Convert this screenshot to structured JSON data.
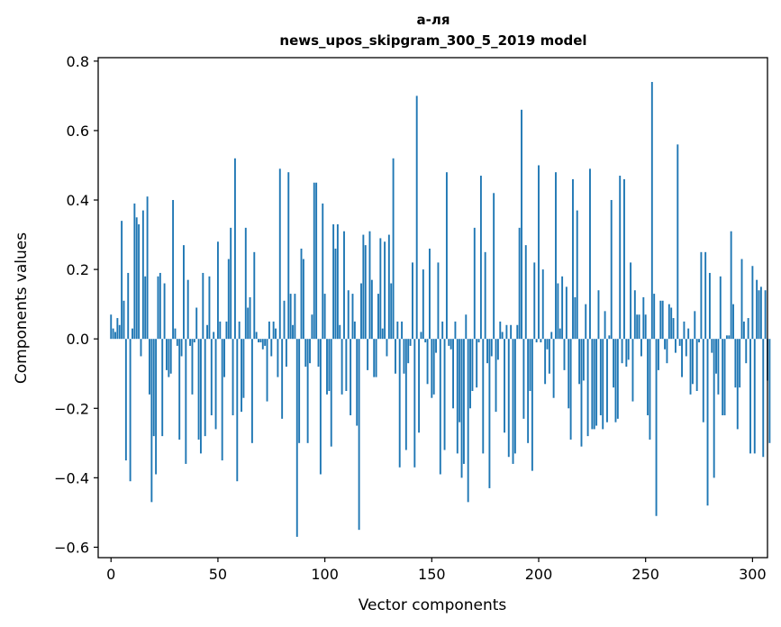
{
  "chart_data": {
    "type": "bar",
    "title_line1": "а-ля",
    "title_line2": "news_upos_skipgram_300_5_2019 model",
    "xlabel": "Vector components",
    "ylabel": "Components values",
    "xlim": [
      -6,
      307
    ],
    "ylim": [
      -0.63,
      0.81
    ],
    "xticks": [
      0,
      50,
      100,
      150,
      200,
      250,
      300
    ],
    "xtick_labels": [
      "0",
      "50",
      "100",
      "150",
      "200",
      "250",
      "300"
    ],
    "yticks": [
      -0.6,
      -0.4,
      -0.2,
      0.0,
      0.2,
      0.4,
      0.6,
      0.8
    ],
    "ytick_labels": [
      "−0.6",
      "−0.4",
      "−0.2",
      "0.0",
      "0.2",
      "0.4",
      "0.6",
      "0.8"
    ],
    "bar_color": "#1f77b4",
    "values": [
      0.07,
      0.03,
      0.02,
      0.06,
      0.04,
      0.34,
      0.11,
      -0.35,
      0.19,
      -0.41,
      0.03,
      0.39,
      0.35,
      0.33,
      -0.05,
      0.37,
      0.18,
      0.41,
      -0.16,
      -0.47,
      -0.28,
      -0.39,
      0.18,
      0.19,
      -0.28,
      0.16,
      -0.09,
      -0.11,
      -0.1,
      0.4,
      0.03,
      -0.02,
      -0.29,
      -0.05,
      0.27,
      -0.36,
      0.17,
      -0.02,
      -0.16,
      -0.01,
      0.09,
      -0.29,
      -0.33,
      0.19,
      -0.28,
      0.04,
      0.18,
      -0.22,
      0.02,
      -0.26,
      0.28,
      0.05,
      -0.35,
      -0.11,
      0.05,
      0.23,
      0.32,
      -0.22,
      0.52,
      -0.41,
      0.05,
      -0.21,
      -0.17,
      0.32,
      0.09,
      0.12,
      -0.3,
      0.25,
      0.02,
      -0.01,
      -0.01,
      -0.03,
      -0.02,
      -0.18,
      0.05,
      -0.05,
      0.05,
      0.03,
      -0.11,
      0.49,
      -0.23,
      0.11,
      -0.08,
      0.48,
      0.13,
      0.04,
      0.13,
      -0.57,
      -0.3,
      0.26,
      0.23,
      -0.08,
      -0.3,
      -0.07,
      0.07,
      0.45,
      0.45,
      -0.08,
      -0.39,
      0.39,
      0.13,
      -0.16,
      -0.15,
      -0.31,
      0.33,
      0.26,
      0.33,
      0.04,
      -0.16,
      0.31,
      -0.15,
      0.14,
      -0.22,
      0.13,
      0.05,
      -0.25,
      -0.55,
      0.16,
      0.3,
      0.27,
      -0.09,
      0.31,
      0.17,
      -0.11,
      -0.11,
      0.13,
      0.29,
      0.03,
      0.28,
      -0.05,
      0.3,
      0.16,
      0.52,
      -0.1,
      0.05,
      -0.37,
      0.05,
      -0.1,
      -0.32,
      -0.07,
      -0.02,
      0.22,
      -0.37,
      0.7,
      -0.27,
      0.02,
      0.2,
      -0.01,
      -0.13,
      0.26,
      -0.17,
      -0.16,
      -0.04,
      0.22,
      -0.39,
      0.05,
      -0.32,
      0.48,
      -0.02,
      -0.03,
      -0.2,
      0.05,
      -0.33,
      -0.24,
      -0.4,
      -0.36,
      0.07,
      -0.47,
      -0.2,
      -0.15,
      0.32,
      -0.14,
      -0.01,
      0.47,
      -0.33,
      0.25,
      -0.07,
      -0.43,
      -0.05,
      0.42,
      -0.21,
      -0.06,
      0.05,
      0.02,
      -0.27,
      0.04,
      -0.34,
      0.04,
      -0.36,
      -0.33,
      0.04,
      0.32,
      0.66,
      -0.23,
      0.27,
      -0.3,
      -0.15,
      -0.38,
      0.22,
      -0.01,
      0.5,
      -0.01,
      0.2,
      -0.13,
      -0.03,
      -0.1,
      0.02,
      -0.17,
      0.48,
      0.16,
      0.03,
      0.18,
      -0.09,
      0.15,
      -0.2,
      -0.29,
      0.46,
      0.12,
      0.37,
      -0.13,
      -0.31,
      -0.12,
      0.1,
      -0.28,
      0.49,
      -0.26,
      -0.26,
      -0.25,
      0.14,
      -0.22,
      -0.26,
      0.08,
      -0.24,
      0.01,
      0.4,
      -0.14,
      -0.24,
      -0.23,
      0.47,
      -0.07,
      0.46,
      -0.08,
      -0.06,
      0.22,
      -0.18,
      0.14,
      0.07,
      0.07,
      -0.05,
      0.12,
      0.07,
      -0.22,
      -0.29,
      0.74,
      0.13,
      -0.51,
      -0.09,
      0.11,
      0.11,
      -0.03,
      -0.07,
      0.1,
      0.09,
      0.06,
      -0.04,
      0.56,
      -0.02,
      -0.11,
      0.05,
      -0.05,
      0.03,
      -0.16,
      -0.13,
      0.08,
      -0.15,
      -0.01,
      0.25,
      -0.24,
      0.25,
      -0.48,
      0.19,
      -0.04,
      -0.4,
      -0.1,
      -0.16,
      0.18,
      -0.22,
      -0.22,
      0.01,
      0.01,
      0.31,
      0.1,
      -0.14,
      -0.26,
      -0.14,
      0.23,
      0.05,
      -0.07,
      0.06,
      -0.33,
      0.21,
      -0.33,
      0.17,
      0.14,
      0.15,
      -0.34,
      0.14,
      -0.12,
      -0.3
    ]
  }
}
